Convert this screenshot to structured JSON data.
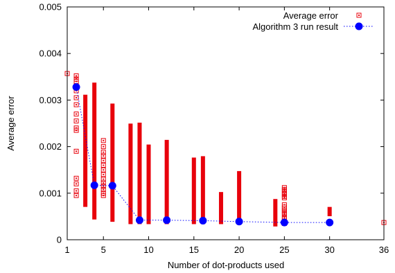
{
  "chart_data": {
    "type": "scatter",
    "xlabel": "Number of dot-products used",
    "ylabel": "Average error",
    "xlim": [
      1,
      36
    ],
    "ylim": [
      0,
      0.005
    ],
    "xticks": [
      1,
      5,
      10,
      15,
      20,
      25,
      30,
      36
    ],
    "xtick_labels": [
      "1",
      "5",
      "10",
      "15",
      "20",
      "25",
      "30",
      "36"
    ],
    "yticks": [
      0,
      0.001,
      0.002,
      0.003,
      0.004,
      0.005
    ],
    "ytick_labels": [
      "0",
      "0.001",
      "0.002",
      "0.003",
      "0.004",
      "0.005"
    ],
    "grid": false,
    "legend_position": "top-right",
    "series": [
      {
        "name": "Average error",
        "marker": "open-square",
        "color": "#e8000b",
        "columns": [
          {
            "x": 2,
            "ymin": 0.00095,
            "ymax": 0.00352,
            "dense": false,
            "values": [
              0.00352,
              0.00345,
              0.0034,
              0.0033,
              0.0032,
              0.00305,
              0.0029,
              0.0027,
              0.00255,
              0.0024,
              0.00235,
              0.0019,
              0.00132,
              0.0012,
              0.00105,
              0.00095
            ]
          },
          {
            "x": 3,
            "ymin": 0.00075,
            "ymax": 0.00307,
            "dense": true
          },
          {
            "x": 4,
            "ymin": 0.00048,
            "ymax": 0.00333,
            "dense": true
          },
          {
            "x": 5,
            "ymin": 0.00095,
            "ymax": 0.00213,
            "dense": false,
            "values": [
              0.00213,
              0.002,
              0.00188,
              0.0018,
              0.0017,
              0.0016,
              0.0015,
              0.0014,
              0.0013,
              0.00122,
              0.00115,
              0.00108,
              0.001,
              0.00095
            ]
          },
          {
            "x": 6,
            "ymin": 0.00043,
            "ymax": 0.00288,
            "dense": true
          },
          {
            "x": 8,
            "ymin": 0.00038,
            "ymax": 0.00245,
            "dense": true
          },
          {
            "x": 9,
            "ymin": 0.00038,
            "ymax": 0.00247,
            "dense": true
          },
          {
            "x": 10,
            "ymin": 0.00038,
            "ymax": 0.002,
            "dense": true
          },
          {
            "x": 12,
            "ymin": 0.00038,
            "ymax": 0.0021,
            "dense": true
          },
          {
            "x": 15,
            "ymin": 0.00038,
            "ymax": 0.00172,
            "dense": true
          },
          {
            "x": 16,
            "ymin": 0.00038,
            "ymax": 0.00175,
            "dense": true
          },
          {
            "x": 18,
            "ymin": 0.00038,
            "ymax": 0.00098,
            "dense": true
          },
          {
            "x": 20,
            "ymin": 0.00038,
            "ymax": 0.00143,
            "dense": true
          },
          {
            "x": 24,
            "ymin": 0.00033,
            "ymax": 0.00083,
            "dense": true
          },
          {
            "x": 25,
            "ymin": 0.00035,
            "ymax": 0.00112,
            "dense": false,
            "values": [
              0.00112,
              0.00108,
              0.00105,
              0.001,
              0.00097,
              0.00093,
              0.0009,
              0.00075,
              0.0007,
              0.00066,
              0.00062,
              0.00058,
              0.00055,
              0.00048,
              0.00045,
              0.0004,
              0.00035
            ]
          },
          {
            "x": 30,
            "ymin": 0.00055,
            "ymax": 0.00066,
            "dense": true
          }
        ],
        "points": [
          {
            "x": 1,
            "y": 0.00357
          },
          {
            "x": 36,
            "y": 0.00037
          }
        ]
      },
      {
        "name": "Algorithm 3 run result",
        "marker": "filled-circle",
        "line": "dotted",
        "color": "#0000ff",
        "x": [
          2,
          4,
          6,
          9,
          12,
          16,
          20,
          25,
          30
        ],
        "y": [
          0.00328,
          0.00117,
          0.00116,
          0.00042,
          0.00042,
          0.00041,
          0.00039,
          0.00037,
          0.00037
        ]
      }
    ]
  }
}
